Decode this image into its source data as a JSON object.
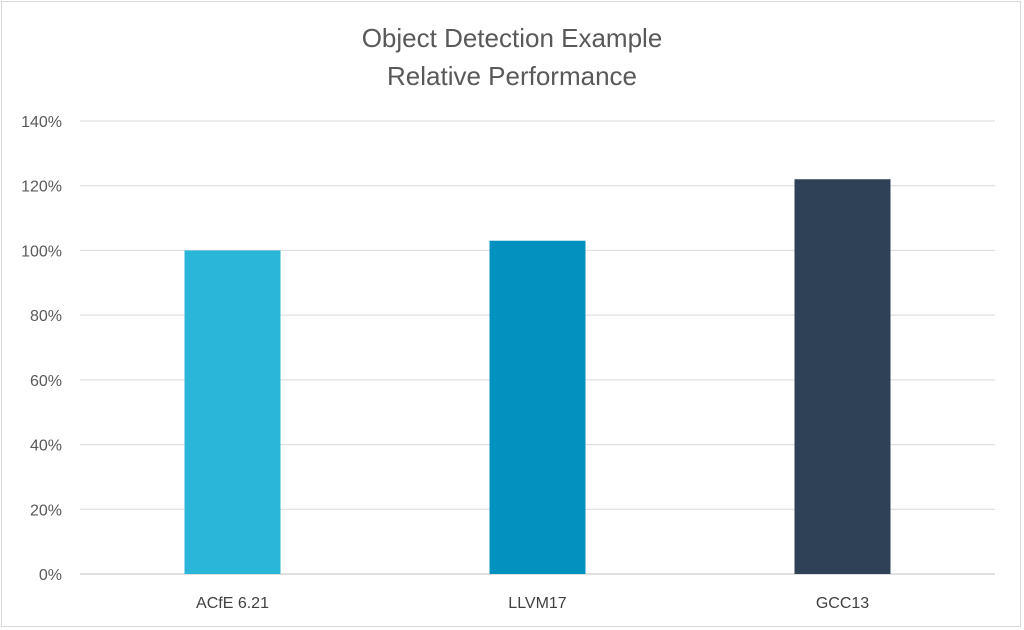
{
  "chart_data": {
    "type": "bar",
    "title": [
      "Object Detection Example",
      "Relative Performance"
    ],
    "categories": [
      "ACfE 6.21",
      "LLVM17",
      "GCC13"
    ],
    "values": [
      100,
      103,
      122
    ],
    "colors": [
      "#29B6D8",
      "#0391C0",
      "#2F4157"
    ],
    "ylim": [
      0,
      140
    ],
    "yticks": [
      0,
      20,
      40,
      60,
      80,
      100,
      120,
      140
    ],
    "ytick_labels": [
      "0%",
      "20%",
      "40%",
      "60%",
      "80%",
      "100%",
      "120%",
      "140%"
    ],
    "xlabel": "",
    "ylabel": "",
    "grid": true,
    "legend": "none"
  }
}
